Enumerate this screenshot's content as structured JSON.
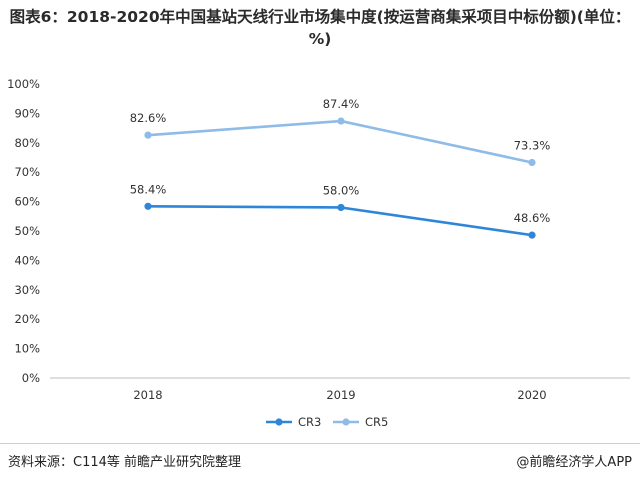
{
  "title": "图表6：2018-2020年中国基站天线行业市场集中度(按运营商集采项目中标份额)(单位：%)",
  "chart_data": {
    "type": "line",
    "categories": [
      "2018",
      "2019",
      "2020"
    ],
    "series": [
      {
        "name": "CR3",
        "values": [
          58.4,
          58.0,
          48.6
        ],
        "labels": [
          "58.4%",
          "58.0%",
          "48.6%"
        ],
        "color": "#2e86d9"
      },
      {
        "name": "CR5",
        "values": [
          82.6,
          87.4,
          73.3
        ],
        "labels": [
          "82.6%",
          "87.4%",
          "73.3%"
        ],
        "color": "#8fbbe8"
      }
    ],
    "ylim": [
      0,
      100
    ],
    "yticks": [
      "0%",
      "10%",
      "20%",
      "30%",
      "40%",
      "50%",
      "60%",
      "70%",
      "80%",
      "90%",
      "100%"
    ],
    "legend_position": "bottom-center"
  },
  "source": "资料来源：C114等 前瞻产业研究院整理",
  "brand": "@前瞻经济学人APP"
}
